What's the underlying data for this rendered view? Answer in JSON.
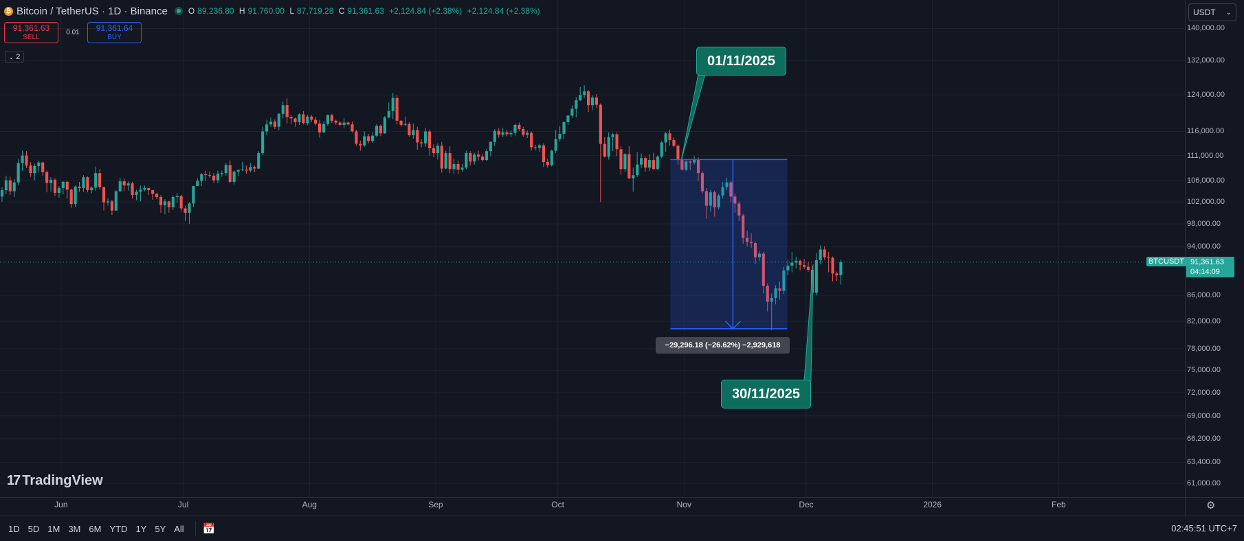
{
  "header": {
    "symbol": "Bitcoin / TetherUS · 1D · Binance",
    "coin_glyph": "₿",
    "open_key": "O",
    "open": "89,236.80",
    "high_key": "H",
    "high": "91,760.00",
    "low_key": "L",
    "low": "87,719.28",
    "close_key": "C",
    "close": "91,361.63",
    "change": "+2,124.84 (+2.38%)",
    "change2": "+2,124.84 (+2.38%)"
  },
  "trade": {
    "sell_price": "91,361.63",
    "sell_label": "SELL",
    "spread": "0.01",
    "buy_price": "91,361.64",
    "buy_label": "BUY"
  },
  "indicator_toggle": "2",
  "currency_select": "USDT",
  "current_price": {
    "symbol": "BTCUSDT",
    "price": "91,361.63",
    "countdown": "04:14:09"
  },
  "annotations": {
    "callout_start": "01/11/2025",
    "callout_end": "30/11/2025",
    "measure_label": "−29,296.18 (−26.62%) −2,929,618"
  },
  "brand": {
    "name": "TradingView",
    "mark": "17"
  },
  "ranges": [
    "1D",
    "5D",
    "1M",
    "3M",
    "6M",
    "YTD",
    "1Y",
    "5Y",
    "All"
  ],
  "clock": "02:45:51 UTC+7",
  "colors": {
    "up": "#26a69a",
    "down": "#ef5350",
    "background": "#131722",
    "grid": "#1e222d",
    "measure": "#2962ff"
  },
  "chart_data": {
    "type": "candlestick",
    "title": "Bitcoin / TetherUS · 1D · Binance",
    "yscale": "log",
    "ylim": [
      59500,
      146000
    ],
    "y_ticks": [
      "140,000.00",
      "132,000.00",
      "124,000.00",
      "116,000.00",
      "111,000.00",
      "106,000.00",
      "102,000.00",
      "98,000.00",
      "94,000.00",
      "86,000.00",
      "82,000.00",
      "78,000.00",
      "75,000.00",
      "72,000.00",
      "69,000.00",
      "66,200.00",
      "63,400.00",
      "61,000.00"
    ],
    "x_ticks": [
      "Jun",
      "Jul",
      "Aug",
      "Sep",
      "Oct",
      "Nov",
      "Dec",
      "2026",
      "Feb"
    ],
    "start_date": "2025-05-17",
    "xlim": [
      "2025-05-17",
      "2026-03-04"
    ],
    "candles": [
      [
        103000,
        104800,
        102000,
        104200
      ],
      [
        104200,
        107000,
        103500,
        106100
      ],
      [
        106100,
        106800,
        103300,
        104000
      ],
      [
        104000,
        106300,
        102900,
        105700
      ],
      [
        105700,
        110300,
        105200,
        109500
      ],
      [
        109500,
        112000,
        107900,
        111000
      ],
      [
        111000,
        111900,
        108500,
        109000
      ],
      [
        109000,
        109700,
        106800,
        107500
      ],
      [
        107500,
        109400,
        106100,
        108900
      ],
      [
        108900,
        110000,
        107600,
        109600
      ],
      [
        109600,
        109800,
        107000,
        107700
      ],
      [
        107700,
        108000,
        103800,
        105600
      ],
      [
        105600,
        106700,
        103900,
        106200
      ],
      [
        106200,
        106500,
        103100,
        103700
      ],
      [
        103700,
        105000,
        102800,
        104600
      ],
      [
        104600,
        105900,
        103400,
        105800
      ],
      [
        105800,
        106000,
        102600,
        104300
      ],
      [
        104300,
        104500,
        100900,
        101600
      ],
      [
        101600,
        105100,
        101000,
        104900
      ],
      [
        104900,
        105800,
        103900,
        104600
      ],
      [
        104600,
        107100,
        103900,
        106700
      ],
      [
        106700,
        106900,
        103800,
        104200
      ],
      [
        104200,
        104900,
        103600,
        104700
      ],
      [
        104700,
        108800,
        104100,
        107500
      ],
      [
        107500,
        108300,
        104300,
        104800
      ],
      [
        104800,
        104900,
        100400,
        101900
      ],
      [
        101900,
        102700,
        101300,
        102100
      ],
      [
        102100,
        102400,
        99600,
        100400
      ],
      [
        100400,
        104200,
        100300,
        104000
      ],
      [
        104000,
        106600,
        103900,
        105900
      ],
      [
        105900,
        106400,
        104000,
        105100
      ],
      [
        105100,
        105900,
        104100,
        105500
      ],
      [
        105500,
        105800,
        102600,
        103300
      ],
      [
        103300,
        104300,
        102300,
        103900
      ],
      [
        103900,
        105100,
        102100,
        104300
      ],
      [
        104300,
        105100,
        104000,
        104600
      ],
      [
        104600,
        104600,
        103300,
        104200
      ],
      [
        104200,
        104300,
        102400,
        103500
      ],
      [
        103500,
        103700,
        102500,
        102900
      ],
      [
        102900,
        103300,
        100000,
        101400
      ],
      [
        101400,
        102500,
        99700,
        102100
      ],
      [
        102100,
        102200,
        100000,
        101000
      ],
      [
        101000,
        103200,
        100500,
        102900
      ],
      [
        102900,
        103700,
        101800,
        103100
      ],
      [
        103100,
        103300,
        100300,
        100800
      ],
      [
        100800,
        101300,
        98500,
        100000
      ],
      [
        100000,
        102000,
        98000,
        101700
      ],
      [
        101700,
        105000,
        101000,
        105000
      ],
      [
        105000,
        106500,
        105000,
        106000
      ],
      [
        106000,
        107500,
        105000,
        107300
      ],
      [
        107300,
        108000,
        106000,
        107100
      ],
      [
        107100,
        107800,
        106600,
        107000
      ],
      [
        107000,
        107500,
        105600,
        106100
      ],
      [
        106100,
        108000,
        105500,
        107400
      ],
      [
        107400,
        108000,
        106800,
        107500
      ],
      [
        107500,
        109500,
        107000,
        109100
      ],
      [
        109100,
        110000,
        105500,
        105800
      ],
      [
        105800,
        108000,
        105300,
        107800
      ],
      [
        107800,
        108300,
        106900,
        108100
      ],
      [
        108100,
        109700,
        107900,
        108200
      ],
      [
        108200,
        109000,
        107400,
        108000
      ],
      [
        108000,
        109500,
        107700,
        108700
      ],
      [
        108700,
        109000,
        107700,
        108400
      ],
      [
        108400,
        111900,
        108300,
        111500
      ],
      [
        111500,
        117000,
        111100,
        116000
      ],
      [
        116000,
        118500,
        115200,
        117500
      ],
      [
        117500,
        119000,
        117000,
        118100
      ],
      [
        118100,
        118600,
        116500,
        117000
      ],
      [
        117000,
        120000,
        116300,
        119800
      ],
      [
        119800,
        122500,
        118800,
        121700
      ],
      [
        121700,
        123200,
        117700,
        119100
      ],
      [
        119100,
        119500,
        117600,
        118800
      ],
      [
        118800,
        119000,
        117000,
        118000
      ],
      [
        118000,
        120000,
        117400,
        119700
      ],
      [
        119700,
        120400,
        117500,
        117800
      ],
      [
        117800,
        119600,
        117300,
        119200
      ],
      [
        119200,
        119500,
        118000,
        118500
      ],
      [
        118500,
        119100,
        117300,
        117700
      ],
      [
        117700,
        118500,
        114700,
        115800
      ],
      [
        115800,
        118200,
        115700,
        117600
      ],
      [
        117600,
        119700,
        117200,
        119500
      ],
      [
        119500,
        119800,
        117800,
        118300
      ],
      [
        118300,
        118500,
        117400,
        117900
      ],
      [
        117900,
        118200,
        117100,
        117400
      ],
      [
        117400,
        118900,
        116700,
        117900
      ],
      [
        117900,
        118100,
        117300,
        117500
      ],
      [
        117500,
        118100,
        115800,
        116000
      ],
      [
        116000,
        116300,
        113000,
        113400
      ],
      [
        113400,
        114100,
        112000,
        113100
      ],
      [
        113100,
        116000,
        112800,
        115000
      ],
      [
        115000,
        115500,
        113500,
        114000
      ],
      [
        114000,
        115800,
        113600,
        115100
      ],
      [
        115100,
        117600,
        114800,
        117200
      ],
      [
        117200,
        117500,
        115000,
        115600
      ],
      [
        115600,
        119300,
        115500,
        119000
      ],
      [
        119000,
        122300,
        118800,
        120400
      ],
      [
        120400,
        124500,
        118600,
        123300
      ],
      [
        123300,
        124000,
        117500,
        118300
      ],
      [
        118300,
        118400,
        117000,
        117400
      ],
      [
        117400,
        119200,
        117200,
        117600
      ],
      [
        117600,
        118000,
        114900,
        115200
      ],
      [
        115200,
        117700,
        114500,
        116300
      ],
      [
        116300,
        117000,
        112200,
        113700
      ],
      [
        113700,
        114400,
        112700,
        113500
      ],
      [
        113500,
        116800,
        112800,
        116000
      ],
      [
        116000,
        116400,
        111000,
        112500
      ],
      [
        112500,
        113300,
        110700,
        111500
      ],
      [
        111500,
        113500,
        110200,
        113000
      ],
      [
        113000,
        113800,
        107600,
        108400
      ],
      [
        108400,
        112000,
        108300,
        111500
      ],
      [
        111500,
        112900,
        107500,
        108300
      ],
      [
        108300,
        110500,
        107400,
        109300
      ],
      [
        109300,
        110000,
        107300,
        108200
      ],
      [
        108200,
        109300,
        107800,
        108600
      ],
      [
        108600,
        112000,
        108300,
        111500
      ],
      [
        111500,
        111900,
        109000,
        109800
      ],
      [
        109800,
        111600,
        109200,
        111200
      ],
      [
        111200,
        112000,
        110000,
        110800
      ],
      [
        110800,
        111300,
        109800,
        110100
      ],
      [
        110100,
        112300,
        109900,
        111900
      ],
      [
        111900,
        114000,
        110800,
        113800
      ],
      [
        113800,
        116500,
        113000,
        116100
      ],
      [
        116100,
        116700,
        114700,
        115300
      ],
      [
        115300,
        116800,
        114800,
        115800
      ],
      [
        115800,
        116300,
        115000,
        115400
      ],
      [
        115400,
        116200,
        114800,
        115700
      ],
      [
        115700,
        117600,
        115000,
        117400
      ],
      [
        117400,
        117900,
        116100,
        116500
      ],
      [
        116500,
        117000,
        114900,
        115300
      ],
      [
        115300,
        116200,
        114600,
        115700
      ],
      [
        115700,
        116000,
        112000,
        112700
      ],
      [
        112700,
        113200,
        112100,
        112600
      ],
      [
        112600,
        113400,
        111800,
        113100
      ],
      [
        113100,
        113500,
        108700,
        109700
      ],
      [
        109700,
        110300,
        108600,
        109100
      ],
      [
        109100,
        112200,
        108800,
        112000
      ],
      [
        112000,
        116300,
        111500,
        114400
      ],
      [
        114400,
        117100,
        113900,
        115500
      ],
      [
        115500,
        118200,
        114400,
        118000
      ],
      [
        118000,
        119600,
        117400,
        119400
      ],
      [
        119400,
        121700,
        118900,
        120900
      ],
      [
        120900,
        123500,
        119000,
        122800
      ],
      [
        122800,
        125800,
        122600,
        124000
      ],
      [
        124000,
        126200,
        123300,
        124800
      ],
      [
        124800,
        125100,
        120200,
        121700
      ],
      [
        121700,
        123900,
        120600,
        123400
      ],
      [
        123400,
        124200,
        121000,
        121800
      ],
      [
        121800,
        122100,
        102000,
        113400
      ],
      [
        113400,
        114800,
        110600,
        110800
      ],
      [
        110800,
        115800,
        110200,
        114800
      ],
      [
        114800,
        115700,
        111900,
        115400
      ],
      [
        115400,
        115800,
        110900,
        112300
      ],
      [
        112300,
        113000,
        107200,
        108300
      ],
      [
        108300,
        111500,
        107800,
        111300
      ],
      [
        111300,
        112900,
        106300,
        106500
      ],
      [
        106500,
        108600,
        103900,
        107100
      ],
      [
        107100,
        111700,
        106700,
        109200
      ],
      [
        109200,
        111400,
        108500,
        110500
      ],
      [
        110500,
        110800,
        107800,
        108600
      ],
      [
        108600,
        111300,
        107900,
        110100
      ],
      [
        110100,
        111600,
        108200,
        108300
      ],
      [
        108300,
        111000,
        108200,
        110800
      ],
      [
        110800,
        114000,
        110500,
        113700
      ],
      [
        113700,
        115900,
        111800,
        115600
      ],
      [
        115600,
        116400,
        113000,
        114200
      ],
      [
        114200,
        114800,
        112700,
        113000
      ],
      [
        113000,
        113300,
        109200,
        110100
      ],
      [
        110100,
        111000,
        108000,
        108200
      ],
      [
        108200,
        110100,
        107900,
        109800
      ],
      [
        109800,
        110100,
        108100,
        109600
      ],
      [
        109600,
        110900,
        109200,
        110200
      ],
      [
        110200,
        110600,
        106000,
        107500
      ],
      [
        107500,
        107900,
        103600,
        104000
      ],
      [
        104000,
        104600,
        98900,
        101300
      ],
      [
        101300,
        104200,
        100200,
        103800
      ],
      [
        103800,
        104100,
        99300,
        101000
      ],
      [
        101000,
        103500,
        100600,
        103200
      ],
      [
        103200,
        105800,
        102700,
        104800
      ],
      [
        104800,
        106600,
        104200,
        105700
      ],
      [
        105700,
        106100,
        101900,
        103000
      ],
      [
        103000,
        103500,
        100000,
        101700
      ],
      [
        101700,
        102100,
        98500,
        99500
      ],
      [
        99500,
        99800,
        94500,
        95500
      ],
      [
        95500,
        96800,
        94000,
        94800
      ],
      [
        94800,
        96300,
        93800,
        94600
      ],
      [
        94600,
        94900,
        91100,
        92200
      ],
      [
        92200,
        93200,
        91600,
        92800
      ],
      [
        92800,
        93100,
        86300,
        87500
      ],
      [
        87500,
        87900,
        83500,
        85000
      ],
      [
        85000,
        86300,
        80700,
        85600
      ],
      [
        85600,
        87600,
        84600,
        87100
      ],
      [
        87100,
        88200,
        85300,
        86700
      ],
      [
        86700,
        90600,
        86200,
        90000
      ],
      [
        90000,
        91800,
        89200,
        90800
      ],
      [
        90800,
        93100,
        89700,
        91300
      ],
      [
        91300,
        92300,
        90300,
        91600
      ],
      [
        91600,
        91800,
        90000,
        90900
      ],
      [
        90900,
        91900,
        90200,
        90600
      ],
      [
        90600,
        91300,
        89800,
        90100
      ],
      [
        90100,
        90700,
        84200,
        86400
      ],
      [
        86400,
        92900,
        86000,
        91700
      ],
      [
        91700,
        94200,
        91000,
        93500
      ],
      [
        93500,
        94100,
        91800,
        92200
      ],
      [
        92200,
        93100,
        89700,
        92100
      ],
      [
        92100,
        92300,
        88200,
        89500
      ],
      [
        89500,
        89800,
        88300,
        89200
      ],
      [
        89236.8,
        91760,
        87719.28,
        91361.63
      ]
    ],
    "measure": {
      "from": "2025-11-01",
      "to": "2025-11-25",
      "high": 110200,
      "low": 80900,
      "change": "−29,296.18",
      "change_pct": "−26.62%",
      "volume": "−2,929,618"
    },
    "last_price": 91361.63
  }
}
